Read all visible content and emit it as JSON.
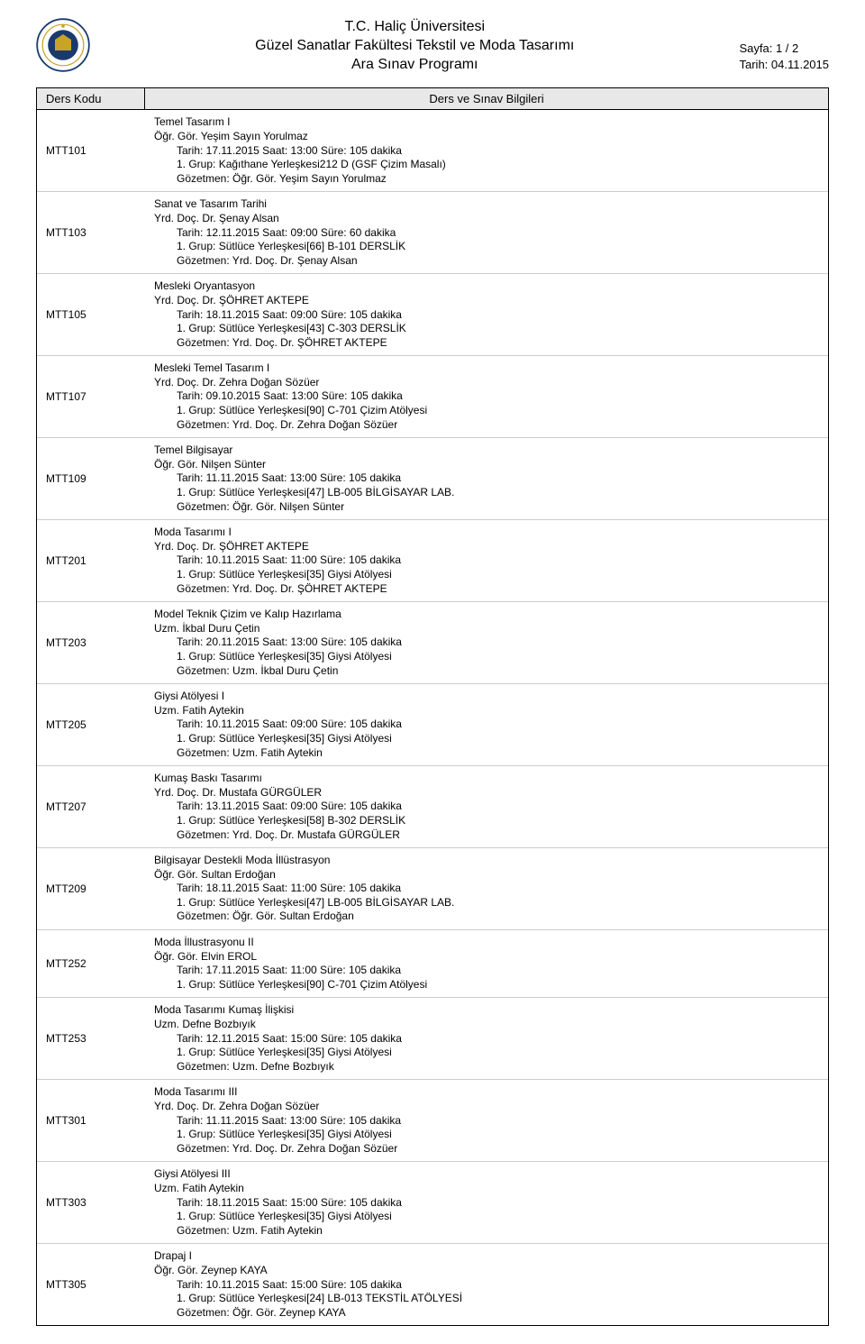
{
  "header": {
    "line1": "T.C. Haliç Üniversitesi",
    "line2": "Güzel Sanatlar Fakültesi Tekstil ve Moda Tasarımı",
    "line3": "Ara Sınav Programı",
    "page": "Sayfa: 1 / 2",
    "date": "Tarih: 04.11.2015"
  },
  "columns": {
    "code": "Ders Kodu",
    "info": "Ders ve Sınav Bilgileri"
  },
  "rows": [
    {
      "code": "MTT101",
      "name": "Temel Tasarım I",
      "instructor": "Öğr. Gör. Yeşim Sayın Yorulmaz",
      "schedule": "Tarih: 17.11.2015 Saat: 13:00   Süre: 105 dakika",
      "group": "1. Grup: Kağıthane Yerleşkesi212 D (GSF Çizim Masalı)",
      "proctor": "Gözetmen: Öğr. Gör. Yeşim Sayın Yorulmaz"
    },
    {
      "code": "MTT103",
      "name": "Sanat ve Tasarım Tarihi",
      "instructor": "Yrd. Doç. Dr. Şenay Alsan",
      "schedule": "Tarih: 12.11.2015 Saat: 09:00   Süre: 60 dakika",
      "group": "1. Grup: Sütlüce Yerleşkesi[66] B-101 DERSLİK",
      "proctor": "Gözetmen: Yrd. Doç. Dr. Şenay Alsan"
    },
    {
      "code": "MTT105",
      "name": "Mesleki Oryantasyon",
      "instructor": "Yrd. Doç. Dr. ŞÖHRET AKTEPE",
      "schedule": "Tarih: 18.11.2015 Saat: 09:00   Süre: 105 dakika",
      "group": "1. Grup: Sütlüce Yerleşkesi[43] C-303 DERSLİK",
      "proctor": "Gözetmen: Yrd. Doç. Dr. ŞÖHRET AKTEPE"
    },
    {
      "code": "MTT107",
      "name": "Mesleki Temel Tasarım I",
      "instructor": "Yrd. Doç. Dr. Zehra Doğan Sözüer",
      "schedule": "Tarih: 09.10.2015 Saat: 13:00   Süre: 105 dakika",
      "group": "1. Grup: Sütlüce Yerleşkesi[90] C-701 Çizim Atölyesi",
      "proctor": "Gözetmen: Yrd. Doç. Dr. Zehra Doğan Sözüer"
    },
    {
      "code": "MTT109",
      "name": "Temel Bilgisayar",
      "instructor": "Öğr. Gör. Nilşen Sünter",
      "schedule": "Tarih: 11.11.2015 Saat: 13:00   Süre: 105 dakika",
      "group": "1. Grup: Sütlüce Yerleşkesi[47] LB-005 BİLGİSAYAR LAB.",
      "proctor": "Gözetmen: Öğr. Gör. Nilşen Sünter"
    },
    {
      "code": "MTT201",
      "name": "Moda Tasarımı I",
      "instructor": "Yrd. Doç. Dr. ŞÖHRET AKTEPE",
      "schedule": "Tarih: 10.11.2015 Saat: 11:00   Süre: 105 dakika",
      "group": "1. Grup: Sütlüce Yerleşkesi[35] Giysi Atölyesi",
      "proctor": "Gözetmen: Yrd. Doç. Dr. ŞÖHRET AKTEPE"
    },
    {
      "code": "MTT203",
      "name": "Model Teknik Çizim ve Kalıp Hazırlama",
      "instructor": "Uzm. İkbal Duru Çetin",
      "schedule": "Tarih: 20.11.2015 Saat: 13:00   Süre: 105 dakika",
      "group": "1. Grup: Sütlüce Yerleşkesi[35] Giysi Atölyesi",
      "proctor": "Gözetmen: Uzm. İkbal Duru Çetin"
    },
    {
      "code": "MTT205",
      "name": "Giysi Atölyesi I",
      "instructor": "Uzm. Fatih Aytekin",
      "schedule": "Tarih: 10.11.2015 Saat: 09:00   Süre: 105 dakika",
      "group": "1. Grup: Sütlüce Yerleşkesi[35] Giysi Atölyesi",
      "proctor": "Gözetmen: Uzm. Fatih Aytekin"
    },
    {
      "code": "MTT207",
      "name": "Kumaş Baskı Tasarımı",
      "instructor": "Yrd. Doç. Dr. Mustafa GÜRGÜLER",
      "schedule": "Tarih: 13.11.2015 Saat: 09:00   Süre: 105 dakika",
      "group": "1. Grup: Sütlüce Yerleşkesi[58] B-302 DERSLİK",
      "proctor": "Gözetmen: Yrd. Doç. Dr. Mustafa GÜRGÜLER"
    },
    {
      "code": "MTT209",
      "name": "Bilgisayar Destekli Moda İllüstrasyon",
      "instructor": "Öğr. Gör. Sultan Erdoğan",
      "schedule": "Tarih: 18.11.2015 Saat: 11:00   Süre: 105 dakika",
      "group": "1. Grup: Sütlüce Yerleşkesi[47] LB-005 BİLGİSAYAR LAB.",
      "proctor": "Gözetmen: Öğr. Gör. Sultan Erdoğan"
    },
    {
      "code": "MTT252",
      "name": "Moda İllustrasyonu II",
      "instructor": "Öğr. Gör. Elvin EROL",
      "schedule": "Tarih: 17.11.2015 Saat: 11:00   Süre: 105 dakika",
      "group": "1. Grup: Sütlüce Yerleşkesi[90] C-701 Çizim Atölyesi",
      "proctor": ""
    },
    {
      "code": "MTT253",
      "name": "Moda Tasarımı Kumaş İlişkisi",
      "instructor": "Uzm. Defne Bozbıyık",
      "schedule": "Tarih: 12.11.2015 Saat: 15:00   Süre: 105 dakika",
      "group": "1. Grup: Sütlüce Yerleşkesi[35] Giysi Atölyesi",
      "proctor": "Gözetmen: Uzm. Defne Bozbıyık"
    },
    {
      "code": "MTT301",
      "name": "Moda Tasarımı III",
      "instructor": "Yrd. Doç. Dr. Zehra Doğan Sözüer",
      "schedule": "Tarih: 11.11.2015 Saat: 13:00   Süre: 105 dakika",
      "group": "1. Grup: Sütlüce Yerleşkesi[35] Giysi Atölyesi",
      "proctor": "Gözetmen: Yrd. Doç. Dr. Zehra Doğan Sözüer"
    },
    {
      "code": "MTT303",
      "name": "Giysi Atölyesi III",
      "instructor": "Uzm. Fatih Aytekin",
      "schedule": "Tarih: 18.11.2015 Saat: 15:00   Süre: 105 dakika",
      "group": "1. Grup: Sütlüce Yerleşkesi[35] Giysi Atölyesi",
      "proctor": "Gözetmen: Uzm. Fatih Aytekin"
    },
    {
      "code": "MTT305",
      "name": "Drapaj I",
      "instructor": "Öğr. Gör. Zeynep KAYA",
      "schedule": "Tarih: 10.11.2015 Saat: 15:00   Süre: 105 dakika",
      "group": "1. Grup: Sütlüce Yerleşkesi[24] LB-013 TEKSTİL ATÖLYESİ",
      "proctor": "Gözetmen: Öğr. Gör. Zeynep KAYA"
    }
  ]
}
